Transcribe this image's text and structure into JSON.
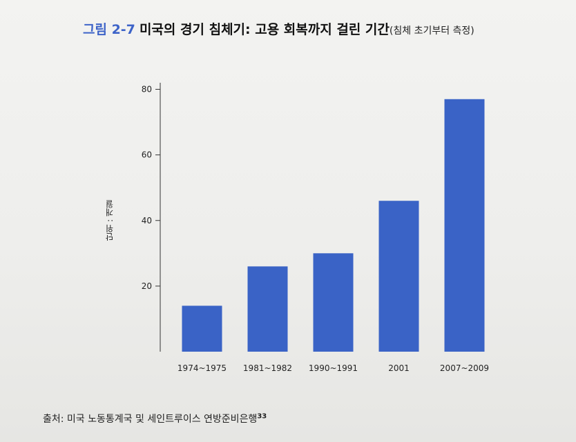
{
  "title": {
    "figure_number": "그림 2-7",
    "main": "미국의 경기 침체기: 고용 회복까지 걸린 기간",
    "sub": "(침체 초기부터 측정)"
  },
  "source": {
    "text": "출처: 미국 노동통계국 및 세인트루이스 연방준비은행",
    "footnote": "33"
  },
  "chart_data": {
    "type": "bar",
    "ylabel": "단위 : 개월",
    "categories": [
      "1974~1975",
      "1981~1982",
      "1990~1991",
      "2001",
      "2007~2009"
    ],
    "values": [
      14,
      26,
      30,
      46,
      77
    ],
    "ylim": [
      0,
      82
    ],
    "yticks": [
      20,
      40,
      60,
      80
    ],
    "bar_color": "#3a63c6",
    "grid": false
  }
}
